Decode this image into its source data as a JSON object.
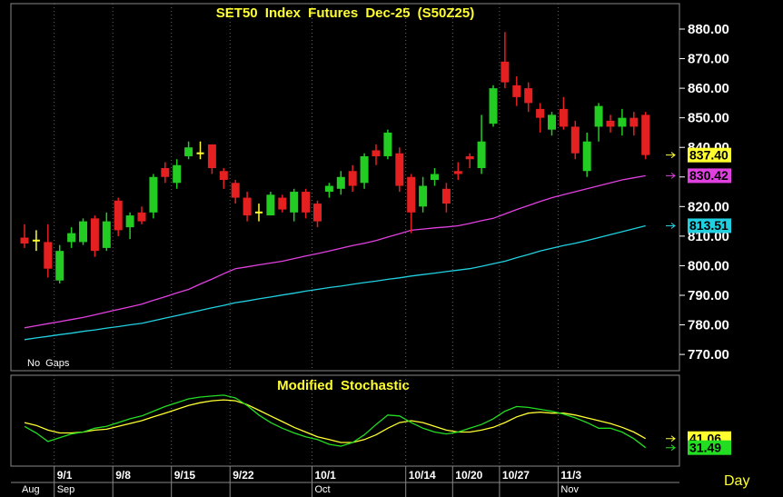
{
  "chart_data": [
    {
      "type": "candlestick",
      "title": "SET50 Index Futures Dec-25 (S50Z25)",
      "annotation": "No Gaps",
      "categories": [
        null,
        null,
        null,
        "9/1",
        null,
        null,
        null,
        null,
        "9/8",
        null,
        null,
        null,
        null,
        "9/15",
        null,
        null,
        null,
        null,
        "9/22",
        null,
        null,
        null,
        null,
        null,
        null,
        "10/1",
        null,
        null,
        null,
        null,
        null,
        null,
        null,
        "10/14",
        null,
        null,
        null,
        "10/20",
        null,
        null,
        null,
        "10/27",
        null,
        null,
        null,
        null,
        "11/3",
        null,
        null,
        null,
        null,
        null,
        null,
        null
      ],
      "months": [
        "Aug",
        null,
        null,
        "Sep",
        null,
        null,
        null,
        null,
        null,
        null,
        null,
        null,
        null,
        null,
        null,
        null,
        null,
        null,
        null,
        null,
        null,
        null,
        null,
        null,
        null,
        "Oct",
        null,
        null,
        null,
        null,
        null,
        null,
        null,
        null,
        null,
        null,
        null,
        null,
        null,
        null,
        null,
        null,
        null,
        null,
        null,
        null,
        "Nov",
        null,
        null,
        null,
        null,
        null,
        null,
        null
      ],
      "open": [
        809.5,
        808.5,
        808,
        795,
        808,
        808,
        816,
        806,
        822,
        813,
        818,
        818,
        833,
        828,
        837,
        838,
        841,
        832,
        828,
        823,
        818,
        817,
        823,
        818,
        825,
        821,
        825,
        826,
        832,
        828,
        839,
        837,
        838,
        830,
        820,
        829,
        826,
        832,
        837,
        833,
        848,
        869,
        861,
        860,
        853,
        846,
        853,
        847,
        832,
        847,
        849,
        847,
        850,
        851
      ],
      "high": [
        814,
        812,
        814,
        807,
        813,
        816,
        817,
        818,
        823,
        818,
        820,
        831,
        835,
        836,
        842,
        842,
        841,
        833,
        829,
        825,
        821,
        825,
        824,
        826,
        826,
        822,
        828,
        832,
        834,
        838,
        841,
        846,
        840,
        831,
        830,
        833,
        828,
        835,
        838,
        851,
        861,
        879,
        864,
        862,
        855,
        852,
        857,
        849,
        845,
        855,
        851,
        853,
        852,
        852
      ],
      "low": [
        806,
        805,
        796,
        794,
        806,
        807,
        803,
        805,
        810,
        809,
        814,
        816,
        828,
        826,
        836,
        836,
        831,
        826,
        821,
        815,
        815,
        817,
        818,
        815,
        816,
        813,
        823,
        824,
        825,
        826,
        834,
        836,
        825,
        811,
        818,
        827,
        818,
        829,
        833,
        831,
        847,
        860,
        854,
        852,
        845,
        844,
        846,
        836,
        830,
        842,
        845,
        844,
        844,
        836
      ],
      "close": [
        807.5,
        808.5,
        799,
        805,
        811,
        815,
        805,
        815,
        812,
        817,
        815,
        830,
        830,
        834,
        840,
        838,
        833,
        829,
        823,
        817,
        818,
        824,
        819,
        825,
        818,
        815,
        827,
        830,
        827,
        837,
        837,
        845,
        827,
        818,
        827,
        831,
        821,
        831,
        836,
        842,
        860,
        862,
        857,
        855,
        850,
        851,
        847,
        838,
        842,
        854,
        847,
        850,
        847,
        837.4
      ],
      "close_labels": [
        null,
        null,
        null,
        null,
        null,
        null,
        null,
        null,
        null,
        null,
        null,
        null,
        null,
        null,
        null,
        null,
        null,
        null,
        null,
        null,
        null,
        null,
        null,
        null,
        null,
        null,
        null,
        null,
        null,
        null,
        null,
        null,
        null,
        null,
        null,
        null,
        null,
        null,
        null,
        null,
        null,
        null,
        null,
        null,
        null,
        null,
        null,
        null,
        null,
        null,
        null,
        null,
        null,
        "837.40"
      ],
      "colors": {
        "up": "#22cc22",
        "down": "#e42020",
        "flat": "#ffff30",
        "last": "#ffff30"
      },
      "series": [
        {
          "color": "#e040e0",
          "values": [
            779,
            779.7,
            780.4,
            781.1,
            781.8,
            782.5,
            783.4,
            784.3,
            785.2,
            786.1,
            787,
            788.3,
            789.5,
            790.8,
            792,
            793.8,
            795.5,
            797.3,
            799,
            799.6,
            800.3,
            800.9,
            801.5,
            802.4,
            803.3,
            804.1,
            805,
            805.9,
            806.8,
            807.6,
            808.5,
            809.7,
            810.8,
            812,
            812.4,
            812.8,
            813.1,
            813.5,
            814.3,
            815.2,
            816,
            817.5,
            819,
            820.3,
            821.7,
            823,
            824,
            825,
            826,
            827,
            828,
            829,
            829.7,
            830.42
          ],
          "value_labels": [
            null,
            null,
            null,
            null,
            null,
            null,
            null,
            null,
            null,
            null,
            null,
            null,
            null,
            null,
            null,
            null,
            null,
            null,
            null,
            null,
            null,
            null,
            null,
            null,
            null,
            null,
            null,
            null,
            null,
            null,
            null,
            null,
            null,
            null,
            null,
            null,
            null,
            null,
            null,
            null,
            null,
            null,
            null,
            null,
            null,
            null,
            null,
            null,
            null,
            null,
            null,
            null,
            null,
            "830.42"
          ]
        },
        {
          "color": "#20d0e0",
          "values": [
            775,
            775.6,
            776.1,
            776.7,
            777.2,
            777.8,
            778.3,
            778.9,
            779.4,
            780,
            780.5,
            781.4,
            782.3,
            783.1,
            784,
            784.9,
            785.8,
            786.6,
            787.5,
            788.1,
            788.8,
            789.4,
            790.1,
            790.7,
            791.4,
            792,
            792.6,
            793.1,
            793.7,
            794.3,
            794.8,
            795.4,
            795.9,
            796.5,
            797,
            797.5,
            798,
            798.5,
            799,
            799.8,
            800.7,
            801.5,
            802.7,
            803.8,
            805,
            805.9,
            806.8,
            807.6,
            808.5,
            809.5,
            810.5,
            811.5,
            812.5,
            813.51
          ],
          "value_labels": [
            null,
            null,
            null,
            null,
            null,
            null,
            null,
            null,
            null,
            null,
            null,
            null,
            null,
            null,
            null,
            null,
            null,
            null,
            null,
            null,
            null,
            null,
            null,
            null,
            null,
            null,
            null,
            null,
            null,
            null,
            null,
            null,
            null,
            null,
            null,
            null,
            null,
            null,
            null,
            null,
            null,
            null,
            null,
            null,
            null,
            null,
            null,
            null,
            null,
            null,
            null,
            null,
            null,
            "813.51"
          ]
        }
      ],
      "ylim": [
        764.5,
        888.6
      ],
      "yticks": [
        {
          "value": 770,
          "label": "770.00"
        },
        {
          "value": 780,
          "label": "780.00"
        },
        {
          "value": 790,
          "label": "790.00"
        },
        {
          "value": 800,
          "label": "800.00"
        },
        {
          "value": 810,
          "label": "810.00"
        },
        {
          "value": 820,
          "label": "820.00"
        },
        {
          "value": 830,
          "label": "830.00"
        },
        {
          "value": 840,
          "label": "840.00"
        },
        {
          "value": 850,
          "label": "850.00"
        },
        {
          "value": 860,
          "label": "860.00"
        },
        {
          "value": 870,
          "label": "870.00"
        },
        {
          "value": 880,
          "label": "880.00"
        }
      ]
    },
    {
      "type": "line",
      "title": "Modified Stochastic",
      "periodicity": "Day",
      "series": [
        {
          "color": "#ffff30",
          "values": [
            58,
            55,
            50,
            47,
            47,
            48,
            50,
            51,
            54,
            57,
            60,
            64,
            68,
            72,
            76,
            79,
            81,
            82,
            81,
            77,
            71,
            65,
            59,
            53,
            48,
            43,
            40,
            37,
            37,
            40,
            45,
            52,
            58,
            60,
            58,
            54,
            50,
            48,
            48,
            50,
            53,
            58,
            64,
            68,
            69,
            68,
            68,
            66,
            63,
            60,
            57,
            53,
            48,
            41.06
          ],
          "value_labels": [
            null,
            null,
            null,
            null,
            null,
            null,
            null,
            null,
            null,
            null,
            null,
            null,
            null,
            null,
            null,
            null,
            null,
            null,
            null,
            null,
            null,
            null,
            null,
            null,
            null,
            null,
            null,
            null,
            null,
            null,
            null,
            null,
            null,
            null,
            null,
            null,
            null,
            null,
            null,
            null,
            null,
            null,
            null,
            null,
            null,
            null,
            null,
            null,
            null,
            null,
            null,
            null,
            null,
            "41.06"
          ]
        },
        {
          "color": "#22dd22",
          "values": [
            54,
            47,
            38,
            42,
            46,
            48,
            52,
            54,
            58,
            62,
            65,
            70,
            75,
            79,
            83,
            85,
            86,
            87,
            84,
            76,
            66,
            58,
            52,
            47,
            43,
            40,
            35,
            33,
            37,
            45,
            56,
            66,
            65,
            58,
            52,
            48,
            46,
            48,
            52,
            56,
            62,
            70,
            75,
            74,
            72,
            70,
            67,
            63,
            58,
            52,
            52,
            48,
            41,
            31.49
          ],
          "value_labels": [
            null,
            null,
            null,
            null,
            null,
            null,
            null,
            null,
            null,
            null,
            null,
            null,
            null,
            null,
            null,
            null,
            null,
            null,
            null,
            null,
            null,
            null,
            null,
            null,
            null,
            null,
            null,
            null,
            null,
            null,
            null,
            null,
            null,
            null,
            null,
            null,
            null,
            null,
            null,
            null,
            null,
            null,
            null,
            null,
            null,
            null,
            null,
            null,
            null,
            null,
            null,
            null,
            null,
            "31.49"
          ]
        }
      ],
      "ylim": [
        12,
        108
      ]
    }
  ]
}
